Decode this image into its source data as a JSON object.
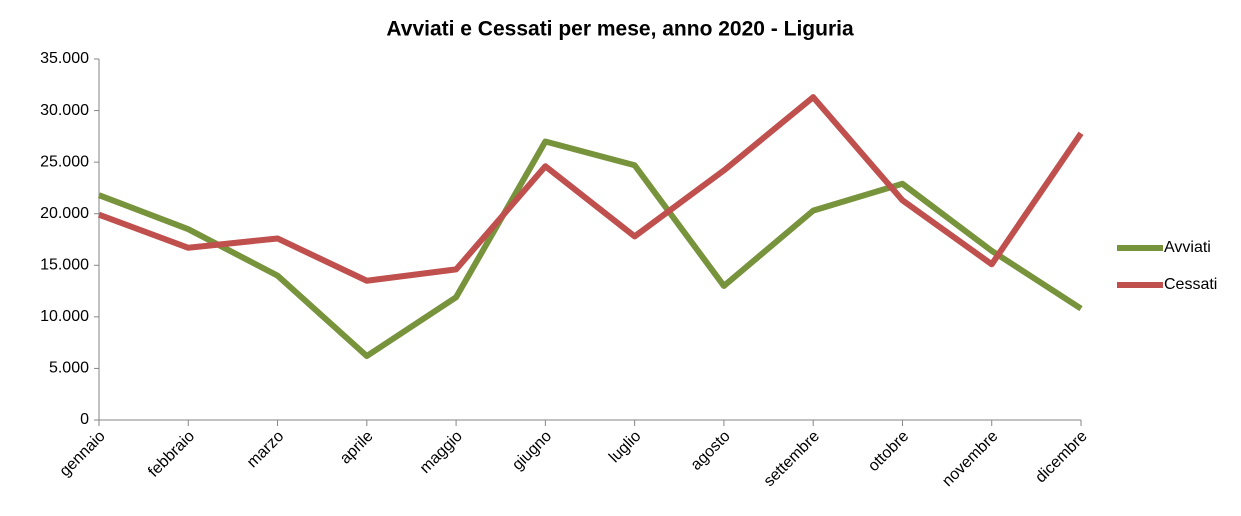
{
  "chart_data": {
    "type": "line",
    "title": "Avviati e Cessati per mese, anno 2020 - Liguria",
    "categories": [
      "gennaio",
      "febbraio",
      "marzo",
      "aprile",
      "maggio",
      "giugno",
      "luglio",
      "agosto",
      "settembre",
      "ottobre",
      "novembre",
      "dicembre"
    ],
    "series": [
      {
        "name": "Avviati",
        "color": "#77933c",
        "values": [
          21800,
          18500,
          14000,
          6200,
          11900,
          27000,
          24700,
          13000,
          20300,
          22900,
          16400,
          10800
        ]
      },
      {
        "name": "Cessati",
        "color": "#c0504d",
        "values": [
          19900,
          16700,
          17600,
          13500,
          14600,
          24600,
          17800,
          24200,
          31300,
          21300,
          15100,
          27800
        ]
      }
    ],
    "ylim": [
      0,
      35000
    ],
    "yticks": [
      0,
      {
        "value": 5000,
        "label": "5.000"
      },
      {
        "value": 10000,
        "label": "10.000"
      },
      {
        "value": 15000,
        "label": "15.000"
      },
      {
        "value": 20000,
        "label": "20.000"
      },
      {
        "value": 25000,
        "label": "25.000"
      },
      {
        "value": 30000,
        "label": "30.000"
      },
      {
        "value": 35000,
        "label": "35.000"
      }
    ],
    "grid": false,
    "legend": "right"
  }
}
